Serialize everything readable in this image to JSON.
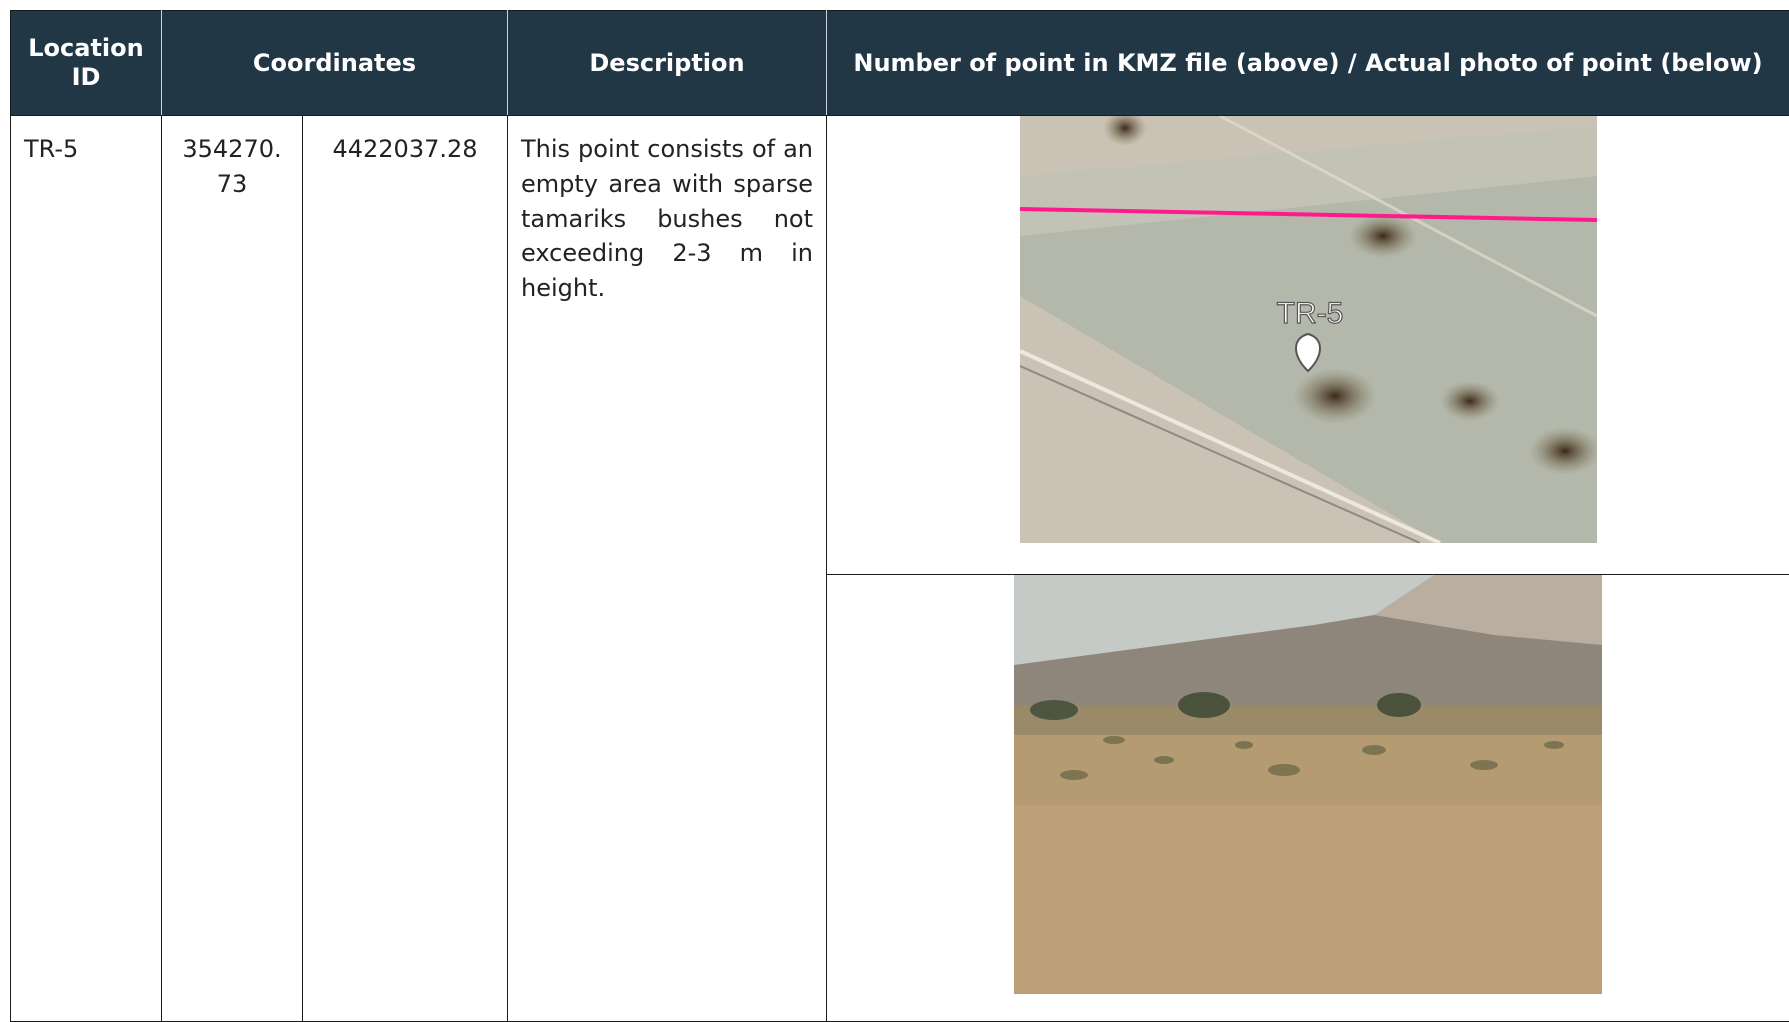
{
  "table": {
    "header": [
      "Location ID",
      "Coordinates",
      "Description",
      "Number of point in KMZ file (above) / Actual photo of point (below)"
    ],
    "rows": [
      {
        "id": "TR-5",
        "x": "354270.73",
        "y": "4422037.28",
        "description": "This point consists of an empty area with sparse tamariks bushes not exceeding 2-3 m in height.",
        "map_label": "TR-5"
      }
    ]
  }
}
